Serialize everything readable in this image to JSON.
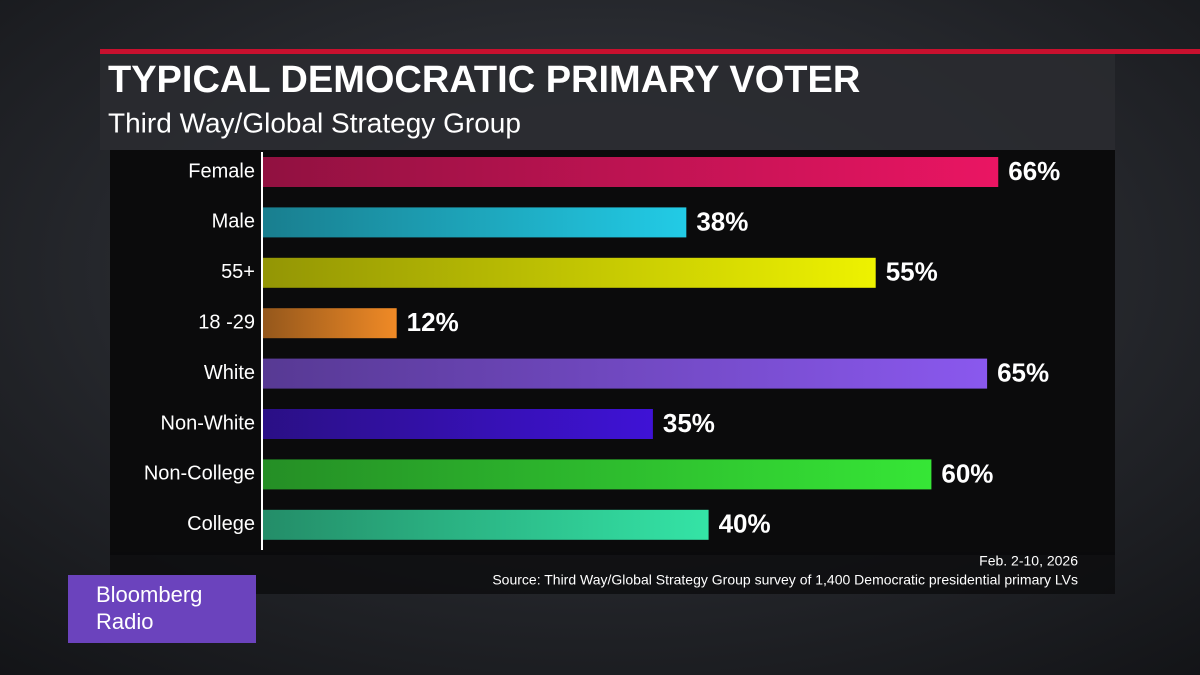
{
  "chart_data": {
    "type": "bar",
    "orientation": "horizontal",
    "title": "TYPICAL DEMOCRATIC PRIMARY VOTER",
    "subtitle": "Third Way/Global Strategy Group",
    "categories": [
      "Female",
      "Male",
      "55+",
      "18 -29",
      "White",
      "Non-White",
      "Non-College",
      "College"
    ],
    "values": [
      66,
      38,
      55,
      12,
      65,
      35,
      60,
      40
    ],
    "value_labels": [
      "66%",
      "38%",
      "55%",
      "12%",
      "65%",
      "35%",
      "60%",
      "40%"
    ],
    "colors": [
      "#ea1563",
      "#22cbe6",
      "#eef200",
      "#f08a26",
      "#8a58ee",
      "#3f12d6",
      "#36e636",
      "#34e4a6"
    ],
    "note": "Feb. 2-10, 2026",
    "source": "Source: Third Way/Global Strategy Group survey of 1,400 Democratic presidential primary LVs"
  },
  "logo": {
    "lines": [
      "Bloomberg",
      "Radio"
    ]
  }
}
